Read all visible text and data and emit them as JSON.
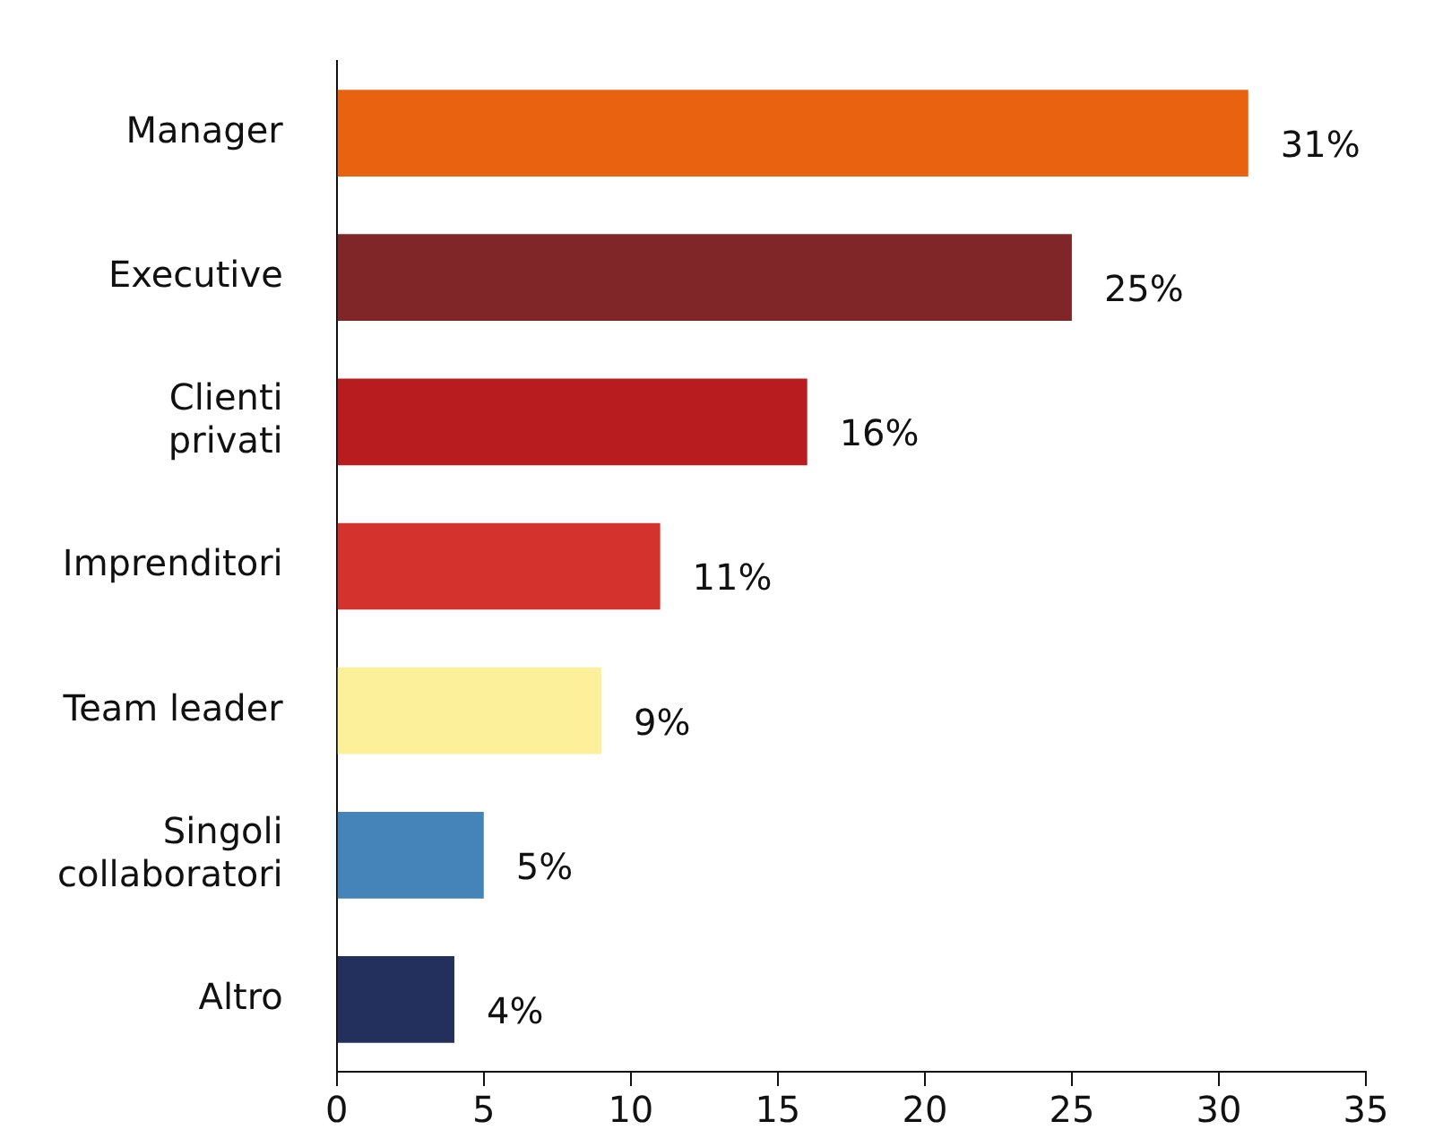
{
  "chart_data": {
    "type": "bar",
    "orientation": "horizontal",
    "categories": [
      "Manager",
      "Executive",
      "Clienti privati",
      "Imprenditori",
      "Team leader",
      "Singoli collaboratori",
      "Altro"
    ],
    "values": [
      31,
      25,
      16,
      11,
      9,
      5,
      4
    ],
    "colors": [
      "#e8620f",
      "#812628",
      "#b91c1f",
      "#d4322c",
      "#fdf09a",
      "#4484b8",
      "#23305e"
    ],
    "value_labels": [
      "31%",
      "25%",
      "16%",
      "11%",
      "9%",
      "5%",
      "4%"
    ],
    "xlim": [
      0,
      35
    ],
    "xticks": [
      0,
      5,
      10,
      15,
      20,
      25,
      30,
      35
    ]
  }
}
